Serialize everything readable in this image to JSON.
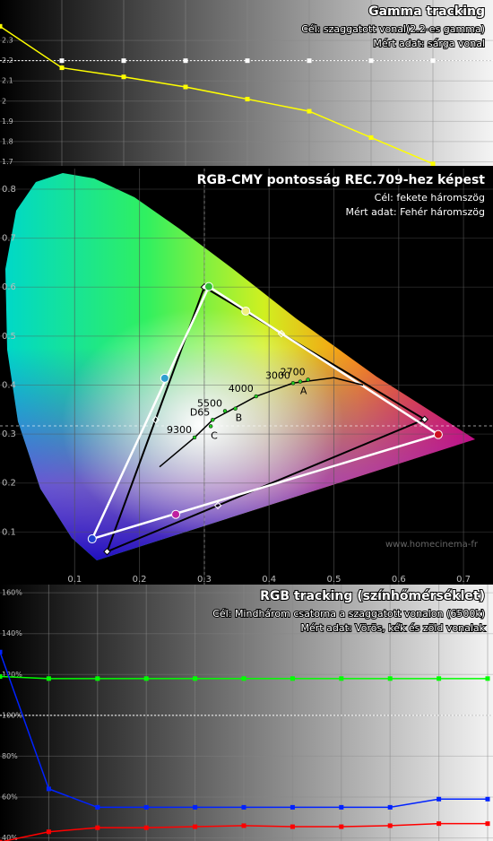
{
  "chart_data": [
    {
      "type": "line",
      "title": "Gamma tracking",
      "subtitles": [
        "Cél: szaggatott vonal(2.2-es gamma)",
        "Mért adat: sárga vonal"
      ],
      "categories": [
        null,
        null,
        null,
        null,
        null,
        null,
        null,
        null
      ],
      "series": [
        {
          "color": "#ffff00",
          "values": [
            2.37,
            2.165,
            2.12,
            2.07,
            2.01,
            1.95,
            1.82,
            1.69
          ]
        }
      ],
      "target": 2.2,
      "target_markers": true,
      "ylim": [
        1.68,
        2.5
      ],
      "yticks": [
        1.7,
        1.8,
        1.9,
        2,
        2.1,
        2.2,
        2.3
      ],
      "grid": true
    },
    {
      "type": "cie",
      "title": "RGB-CMY pontosság REC.709-hez képest",
      "subtitles": [
        "Cél: fekete háromszög",
        "Mért adat: Fehér háromszög"
      ],
      "xlim": [
        -0.0152,
        0.7455
      ],
      "ylim": [
        -0.0073,
        0.842
      ],
      "xticks": [
        0.1,
        0.2,
        0.3,
        0.4,
        0.5,
        0.6,
        0.7
      ],
      "yticks": [
        0.1,
        0.2,
        0.3,
        0.4,
        0.5,
        0.6,
        0.7,
        0.8
      ],
      "grid": true,
      "target": {
        "color": "#000000",
        "x": [
          0.64,
          0.3,
          0.15
        ],
        "y": [
          0.33,
          0.6,
          0.06
        ]
      },
      "target_secondary": {
        "color": "#ffffff",
        "x": [
          0.225,
          0.419,
          0.321
        ],
        "y": [
          0.329,
          0.505,
          0.154
        ]
      },
      "measured": {
        "color": "#ffffff",
        "x": [
          0.661,
          0.307,
          0.127
        ],
        "y": [
          0.299,
          0.601,
          0.086
        ],
        "point_colors": [
          "#d01020",
          "#30c030",
          "#2040d0"
        ]
      },
      "measured_secondary": {
        "x": [
          0.239,
          0.364,
          0.256
        ],
        "y": [
          0.414,
          0.551,
          0.136
        ],
        "point_colors": [
          "#30a0d0",
          "#f0f080",
          "#c020a0"
        ]
      },
      "planckian": {
        "color": "#000000",
        "x": [
          0.231,
          0.285,
          0.313,
          0.38,
          0.437,
          0.5,
          0.545
        ],
        "y": [
          0.233,
          0.293,
          0.329,
          0.377,
          0.404,
          0.415,
          0.4
        ]
      },
      "cct": {
        "x": [
          0.285,
          0.313,
          0.332,
          0.38,
          0.437,
          0.46
        ],
        "y": [
          0.293,
          0.329,
          0.347,
          0.377,
          0.404,
          0.411
        ],
        "labels": [
          "9300",
          "D65",
          "5500",
          "4000",
          "3000",
          "2700"
        ]
      },
      "illuminants": {
        "x": [
          0.448,
          0.348,
          0.31
        ],
        "y": [
          0.407,
          0.352,
          0.316
        ],
        "labels": [
          "A",
          "B",
          "C"
        ]
      },
      "watermark": "www.homecinema-fr"
    },
    {
      "type": "line",
      "title": "RGB tracking (színhőmérséklet)",
      "subtitles": [
        "Cél: Mindhárom csatorna a szaggatott vonalon (6500k)",
        "Mért adat: Vörös, kék és zöld vonalak"
      ],
      "categories": [
        null,
        null,
        null,
        null,
        null,
        null,
        null,
        null,
        null,
        null,
        null
      ],
      "series": [
        {
          "color": "#00ff00",
          "values": [
            119,
            118,
            118,
            118,
            118,
            118,
            118,
            118,
            118,
            118,
            118
          ]
        },
        {
          "color": "#0022ff",
          "values": [
            131,
            64,
            55,
            55,
            55,
            55,
            55,
            55,
            55,
            59,
            59
          ]
        },
        {
          "color": "#ff0000",
          "values": [
            38,
            43,
            45,
            45,
            45.5,
            46,
            45.5,
            45.5,
            46,
            47,
            47
          ]
        }
      ],
      "target": 100,
      "target_markers": false,
      "ylim": [
        38.5,
        164
      ],
      "yticks": [
        {
          "value": 40,
          "label": "40%"
        },
        {
          "value": 60,
          "label": "60%"
        },
        {
          "value": 80,
          "label": "80%"
        },
        {
          "value": 100,
          "label": "100%"
        },
        {
          "value": 120,
          "label": "120%"
        },
        {
          "value": 140,
          "label": "140%"
        },
        {
          "value": 160,
          "label": "160%"
        }
      ],
      "grid": true
    }
  ]
}
